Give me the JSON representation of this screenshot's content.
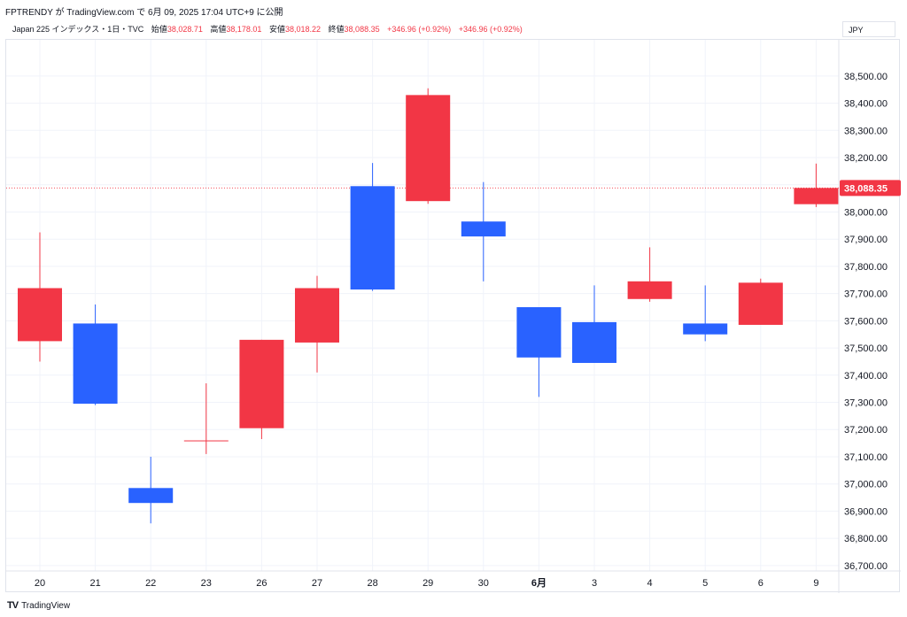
{
  "header": {
    "attribution": "FPTRENDY が TradingView.com で 6月 09, 2025 17:04 UTC+9 に公開"
  },
  "ohlc": {
    "symbol": "Japan 225 インデックス・1日・TVC",
    "open_label": "始値",
    "open": "38,028.71",
    "high_label": "高値",
    "high": "38,178.01",
    "low_label": "安値",
    "low": "38,018.22",
    "close_label": "終値",
    "close": "38,088.35",
    "change": "+346.96 (+0.92%)",
    "change2": "+346.96 (+0.92%)"
  },
  "currency": "JPY",
  "footer": {
    "logo": "TV",
    "brand": "TradingView"
  },
  "colors": {
    "up": "#f23645",
    "down": "#2962ff",
    "grid": "#f0f3fa"
  },
  "chart_data": {
    "type": "candlestick",
    "ylim": [
      36680,
      38620
    ],
    "y_ticks": [
      36700,
      36800,
      36900,
      37000,
      37100,
      37200,
      37300,
      37400,
      37500,
      37600,
      37700,
      37800,
      37900,
      38000,
      38100,
      38200,
      38300,
      38400,
      38500
    ],
    "y_tick_labels": [
      "36,700.00",
      "36,800.00",
      "36,900.00",
      "37,000.00",
      "37,100.00",
      "37,200.00",
      "37,300.00",
      "37,400.00",
      "37,500.00",
      "37,600.00",
      "37,700.00",
      "37,800.00",
      "37,900.00",
      "38,000.00",
      "38,100.00",
      "38,200.00",
      "38,300.00",
      "38,400.00",
      "38,500.00"
    ],
    "current_price": 38088.35,
    "current_price_label": "38,088.35",
    "candles": [
      {
        "x": "20",
        "open": 37525,
        "high": 37925,
        "low": 37450,
        "close": 37720
      },
      {
        "x": "21",
        "open": 37590,
        "high": 37660,
        "low": 37290,
        "close": 37295
      },
      {
        "x": "22",
        "open": 36985,
        "high": 37100,
        "low": 36855,
        "close": 36930
      },
      {
        "x": "23",
        "open": 37160,
        "high": 37370,
        "low": 37110,
        "close": 37160
      },
      {
        "x": "26",
        "open": 37205,
        "high": 37530,
        "low": 37165,
        "close": 37530
      },
      {
        "x": "27",
        "open": 37520,
        "high": 37765,
        "low": 37410,
        "close": 37720
      },
      {
        "x": "28",
        "open": 38095,
        "high": 38180,
        "low": 37710,
        "close": 37715
      },
      {
        "x": "29",
        "open": 38040,
        "high": 38455,
        "low": 38030,
        "close": 38430
      },
      {
        "x": "30",
        "open": 37965,
        "high": 38110,
        "low": 37745,
        "close": 37910
      },
      {
        "x": "6月",
        "open": 37650,
        "high": 37650,
        "low": 37320,
        "close": 37465,
        "bold": true
      },
      {
        "x": "3",
        "open": 37595,
        "high": 37730,
        "low": 37445,
        "close": 37445
      },
      {
        "x": "4",
        "open": 37680,
        "high": 37870,
        "low": 37670,
        "close": 37745
      },
      {
        "x": "5",
        "open": 37590,
        "high": 37730,
        "low": 37525,
        "close": 37550
      },
      {
        "x": "6",
        "open": 37585,
        "high": 37755,
        "low": 37585,
        "close": 37740
      },
      {
        "x": "9",
        "open": 38028.71,
        "high": 38178.01,
        "low": 38018.22,
        "close": 38088.35
      }
    ]
  }
}
